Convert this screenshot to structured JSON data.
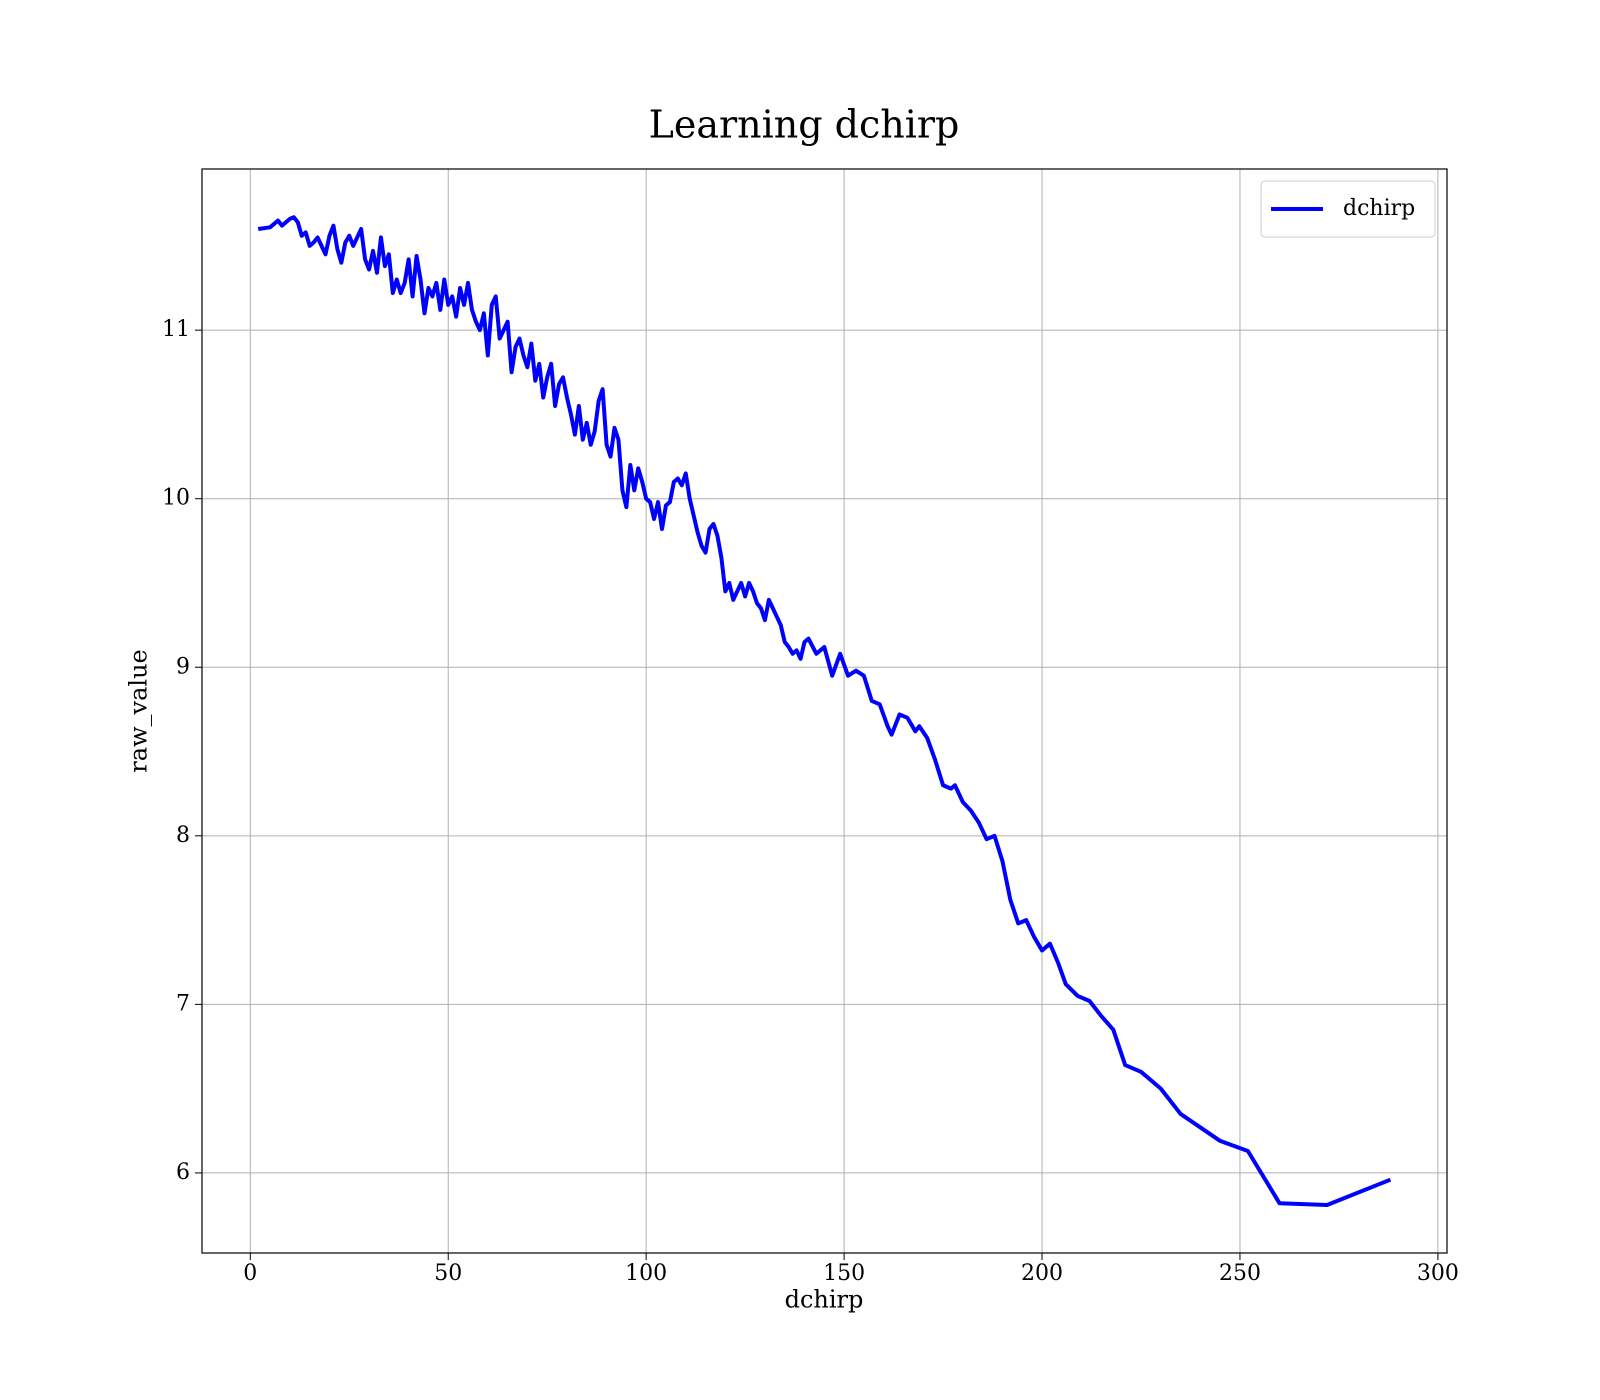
{
  "chart_data": {
    "type": "line",
    "title": "Learning dchirp",
    "xlabel": "dchirp",
    "ylabel": "raw_value",
    "x": [
      2,
      5,
      7,
      8,
      10,
      11,
      12,
      13,
      14,
      15,
      16,
      17,
      18,
      19,
      20,
      21,
      22,
      23,
      24,
      25,
      26,
      27,
      28,
      29,
      30,
      31,
      32,
      33,
      34,
      35,
      36,
      37,
      38,
      39,
      40,
      41,
      42,
      43,
      44,
      45,
      46,
      47,
      48,
      49,
      50,
      51,
      52,
      53,
      54,
      55,
      56,
      57,
      58,
      59,
      60,
      61,
      62,
      63,
      64,
      65,
      66,
      67,
      68,
      69,
      70,
      71,
      72,
      73,
      74,
      75,
      76,
      77,
      78,
      79,
      80,
      81,
      82,
      83,
      84,
      85,
      86,
      87,
      88,
      89,
      90,
      91,
      92,
      93,
      94,
      95,
      96,
      97,
      98,
      99,
      100,
      101,
      102,
      103,
      104,
      105,
      106,
      107,
      108,
      109,
      110,
      111,
      112,
      113,
      114,
      115,
      116,
      117,
      118,
      119,
      120,
      121,
      122,
      123,
      124,
      125,
      126,
      127,
      128,
      129,
      130,
      131,
      132,
      133,
      134,
      135,
      136,
      137,
      138,
      139,
      140,
      141,
      143,
      145,
      147,
      149,
      151,
      153,
      155,
      157,
      159,
      161,
      162,
      164,
      166,
      168,
      169,
      171,
      173,
      175,
      177,
      178,
      180,
      182,
      184,
      186,
      188,
      190,
      192,
      194,
      196,
      198,
      200,
      202,
      204,
      206,
      209,
      212,
      215,
      218,
      221,
      225,
      230,
      235,
      240,
      245,
      252,
      260,
      272,
      288
    ],
    "series": [
      {
        "name": "dchirp",
        "color": "#0000ff",
        "values": [
          11.6,
          11.61,
          11.65,
          11.62,
          11.66,
          11.67,
          11.64,
          11.56,
          11.58,
          11.5,
          11.52,
          11.55,
          11.5,
          11.45,
          11.56,
          11.62,
          11.48,
          11.4,
          11.52,
          11.56,
          11.5,
          11.55,
          11.6,
          11.42,
          11.36,
          11.47,
          11.34,
          11.55,
          11.38,
          11.45,
          11.22,
          11.3,
          11.22,
          11.28,
          11.42,
          11.2,
          11.44,
          11.3,
          11.1,
          11.25,
          11.2,
          11.28,
          11.12,
          11.3,
          11.15,
          11.2,
          11.08,
          11.25,
          11.15,
          11.28,
          11.12,
          11.05,
          11.0,
          11.1,
          10.85,
          11.15,
          11.2,
          10.95,
          11.0,
          11.05,
          10.75,
          10.9,
          10.95,
          10.85,
          10.78,
          10.92,
          10.7,
          10.8,
          10.6,
          10.72,
          10.8,
          10.55,
          10.68,
          10.72,
          10.6,
          10.5,
          10.38,
          10.55,
          10.35,
          10.45,
          10.32,
          10.4,
          10.58,
          10.65,
          10.32,
          10.25,
          10.42,
          10.35,
          10.05,
          9.95,
          10.2,
          10.05,
          10.18,
          10.1,
          10.0,
          9.98,
          9.88,
          9.98,
          9.82,
          9.96,
          9.98,
          10.1,
          10.12,
          10.08,
          10.15,
          10.0,
          9.9,
          9.8,
          9.72,
          9.68,
          9.82,
          9.85,
          9.78,
          9.65,
          9.45,
          9.5,
          9.4,
          9.45,
          9.5,
          9.42,
          9.5,
          9.45,
          9.38,
          9.35,
          9.28,
          9.4,
          9.35,
          9.3,
          9.25,
          9.15,
          9.12,
          9.08,
          9.1,
          9.05,
          9.15,
          9.17,
          9.08,
          9.12,
          8.95,
          9.08,
          8.95,
          8.98,
          8.95,
          8.8,
          8.78,
          8.65,
          8.6,
          8.72,
          8.7,
          8.62,
          8.65,
          8.58,
          8.45,
          8.3,
          8.28,
          8.3,
          8.2,
          8.15,
          8.08,
          7.98,
          8.0,
          7.85,
          7.62,
          7.48,
          7.5,
          7.4,
          7.32,
          7.36,
          7.25,
          7.12,
          7.05,
          7.02,
          6.93,
          6.85,
          6.64,
          6.6,
          6.5,
          6.35,
          6.27,
          6.19,
          6.13,
          5.82,
          5.81,
          5.96
        ]
      }
    ],
    "xlim": [
      -12.2,
      302.3
    ],
    "ylim": [
      5.525,
      11.956
    ],
    "xticks": [
      0,
      50,
      100,
      150,
      200,
      250,
      300
    ],
    "yticks": [
      6,
      7,
      8,
      9,
      10,
      11
    ],
    "grid": true,
    "legend": "upper right"
  }
}
